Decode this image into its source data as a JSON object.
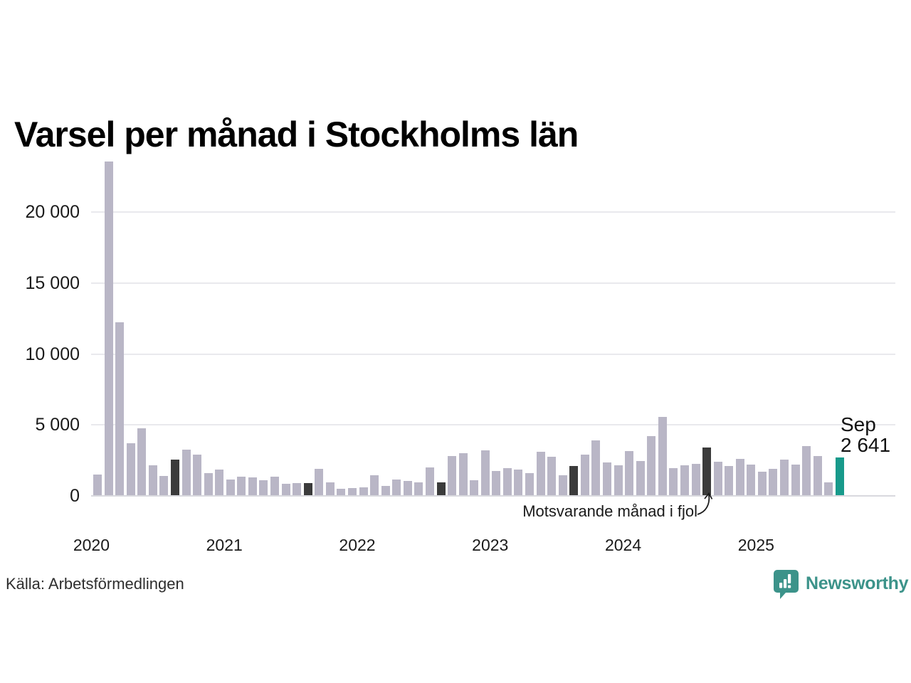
{
  "page": {
    "source_label": "Källa: Arbetsförmedlingen"
  },
  "brand": {
    "name": "Newsworthy",
    "color": "#3c938a"
  },
  "annotation": {
    "label": "Motsvarande månad i fjol"
  },
  "highlight": {
    "month": "Sep",
    "value": "2 641"
  },
  "colors": {
    "bar_normal": "#b9b6c6",
    "bar_prev_year_month": "#3b3b3b",
    "bar_current": "#189a8b",
    "gridline": "#e9e9ed"
  },
  "chart_data": {
    "type": "bar",
    "title": "Varsel per månad i Stockholms län",
    "xlabel": "",
    "ylabel": "",
    "ylim": [
      0,
      23800
    ],
    "grid": "horizontal",
    "legend": "none",
    "yticks": [
      {
        "value": 0,
        "label": "0"
      },
      {
        "value": 5000,
        "label": "5 000"
      },
      {
        "value": 10000,
        "label": "10 000"
      },
      {
        "value": 15000,
        "label": "15 000"
      },
      {
        "value": 20000,
        "label": "20 000"
      }
    ],
    "year_ticks": [
      {
        "label": "2020",
        "month_index": -1
      },
      {
        "label": "2021",
        "month_index": 11
      },
      {
        "label": "2022",
        "month_index": 23
      },
      {
        "label": "2023",
        "month_index": 35
      },
      {
        "label": "2024",
        "month_index": 47
      },
      {
        "label": "2025",
        "month_index": 59
      }
    ],
    "roles_legend": {
      "m": "månad",
      "f": "motsvarande månad i fjol (mörk stapel, september varje år)",
      "c": "aktuell månad Sep 2025 (grön stapel, 2 641)"
    },
    "months": [
      "2020-02",
      "2020-03",
      "2020-04",
      "2020-05",
      "2020-06",
      "2020-07",
      "2020-08",
      "2020-09",
      "2020-10",
      "2020-11",
      "2020-12",
      "2021-01",
      "2021-02",
      "2021-03",
      "2021-04",
      "2021-05",
      "2021-06",
      "2021-07",
      "2021-08",
      "2021-09",
      "2021-10",
      "2021-11",
      "2021-12",
      "2022-01",
      "2022-02",
      "2022-03",
      "2022-04",
      "2022-05",
      "2022-06",
      "2022-07",
      "2022-08",
      "2022-09",
      "2022-10",
      "2022-11",
      "2022-12",
      "2023-01",
      "2023-02",
      "2023-03",
      "2023-04",
      "2023-05",
      "2023-06",
      "2023-07",
      "2023-08",
      "2023-09",
      "2023-10",
      "2023-11",
      "2023-12",
      "2024-01",
      "2024-02",
      "2024-03",
      "2024-04",
      "2024-05",
      "2024-06",
      "2024-07",
      "2024-08",
      "2024-09",
      "2024-10",
      "2024-11",
      "2024-12",
      "2025-01",
      "2025-02",
      "2025-03",
      "2025-04",
      "2025-05",
      "2025-06",
      "2025-07",
      "2025-08",
      "2025-09"
    ],
    "values": [
      1450,
      23500,
      12200,
      3650,
      4700,
      2100,
      1350,
      2500,
      3200,
      2850,
      1550,
      1820,
      1100,
      1300,
      1250,
      1050,
      1300,
      800,
      830,
      870,
      1850,
      880,
      450,
      500,
      550,
      1390,
      650,
      1100,
      990,
      900,
      1940,
      900,
      2740,
      2980,
      1070,
      3170,
      1710,
      1930,
      1810,
      1560,
      3080,
      2700,
      1430,
      2060,
      2850,
      3850,
      2300,
      2120,
      3100,
      2400,
      4150,
      5500,
      1890,
      2120,
      2200,
      3380,
      2380,
      2070,
      2540,
      2160,
      1640,
      1870,
      2530,
      2170,
      3480,
      2760,
      890,
      2641
    ],
    "roles": [
      "m",
      "m",
      "m",
      "m",
      "m",
      "m",
      "m",
      "f",
      "m",
      "m",
      "m",
      "m",
      "m",
      "m",
      "m",
      "m",
      "m",
      "m",
      "m",
      "f",
      "m",
      "m",
      "m",
      "m",
      "m",
      "m",
      "m",
      "m",
      "m",
      "m",
      "m",
      "f",
      "m",
      "m",
      "m",
      "m",
      "m",
      "m",
      "m",
      "m",
      "m",
      "m",
      "m",
      "f",
      "m",
      "m",
      "m",
      "m",
      "m",
      "m",
      "m",
      "m",
      "m",
      "m",
      "m",
      "f",
      "m",
      "m",
      "m",
      "m",
      "m",
      "m",
      "m",
      "m",
      "m",
      "m",
      "m",
      "c"
    ]
  }
}
